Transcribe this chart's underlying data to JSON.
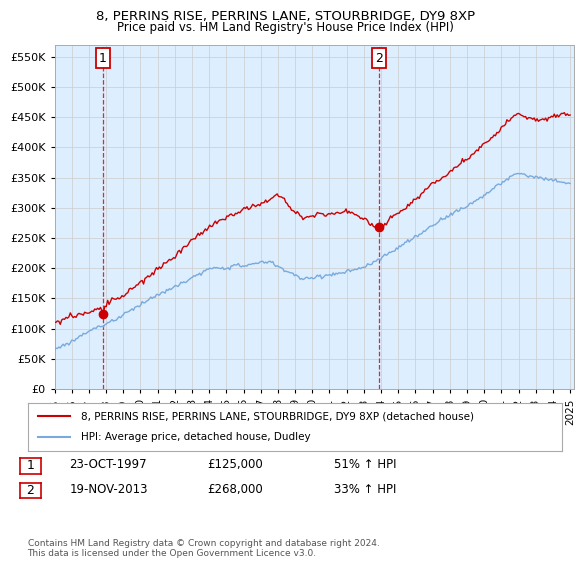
{
  "title": "8, PERRINS RISE, PERRINS LANE, STOURBRIDGE, DY9 8XP",
  "subtitle": "Price paid vs. HM Land Registry's House Price Index (HPI)",
  "ylim": [
    0,
    570000
  ],
  "yticks": [
    0,
    50000,
    100000,
    150000,
    200000,
    250000,
    300000,
    350000,
    400000,
    450000,
    500000,
    550000
  ],
  "ytick_labels": [
    "£0",
    "£50K",
    "£100K",
    "£150K",
    "£200K",
    "£250K",
    "£300K",
    "£350K",
    "£400K",
    "£450K",
    "£500K",
    "£550K"
  ],
  "sale1_date": 1997.81,
  "sale1_price": 125000,
  "sale2_date": 2013.89,
  "sale2_price": 268000,
  "property_color": "#cc0000",
  "hpi_color": "#7aaadd",
  "grid_color": "#cccccc",
  "background_color": "#ffffff",
  "plot_bg_color": "#ddeeff",
  "legend_label1": "8, PERRINS RISE, PERRINS LANE, STOURBRIDGE, DY9 8XP (detached house)",
  "legend_label2": "HPI: Average price, detached house, Dudley",
  "annotation1_label": "1",
  "annotation1_date": "23-OCT-1997",
  "annotation1_price": "£125,000",
  "annotation1_hpi": "51% ↑ HPI",
  "annotation2_label": "2",
  "annotation2_date": "19-NOV-2013",
  "annotation2_price": "£268,000",
  "annotation2_hpi": "33% ↑ HPI",
  "footer": "Contains HM Land Registry data © Crown copyright and database right 2024.\nThis data is licensed under the Open Government Licence v3.0.",
  "xmin": 1995.0,
  "xmax": 2025.2
}
